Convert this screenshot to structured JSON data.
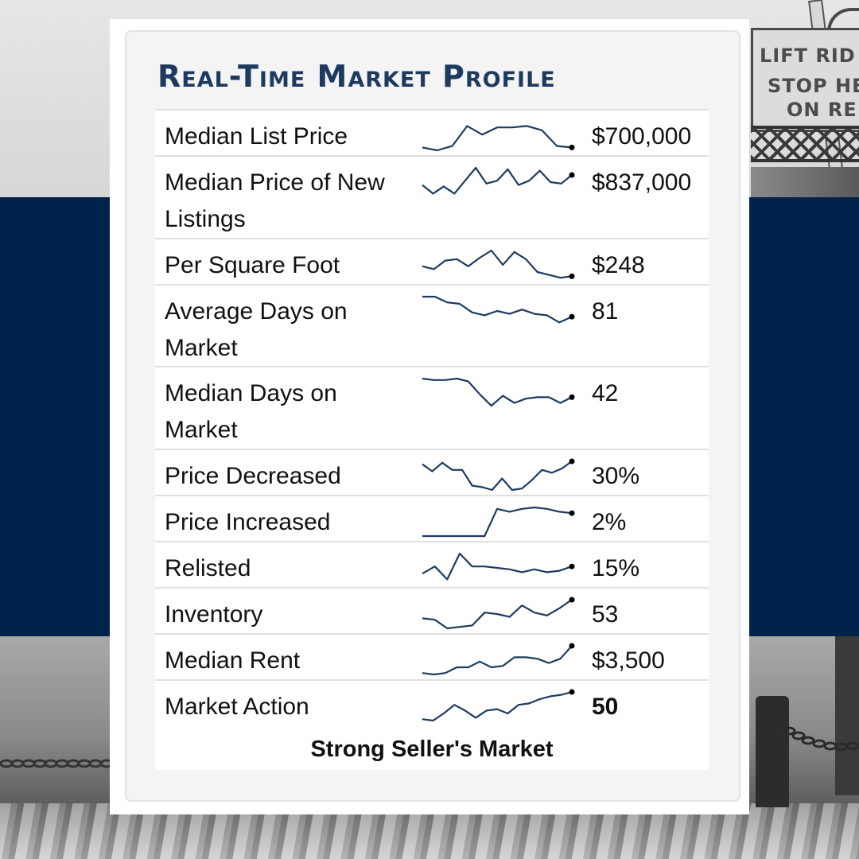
{
  "background": {
    "navy_band_color": "#00234b",
    "sign_lines": [
      "LIFT RID",
      "STOP HE",
      "ON RE"
    ]
  },
  "profile": {
    "title": "Real-Time Market Profile",
    "title_color": "#1e3a5f",
    "sparkline_color": "#1e3a5f",
    "rows": [
      {
        "label": "Median List Price",
        "value": "$700,000",
        "bold": false,
        "trend": [
          0.1,
          0.0,
          0.15,
          0.85,
          0.55,
          0.8,
          0.8,
          0.85,
          0.7,
          0.15,
          0.1
        ]
      },
      {
        "label": "Median Price of New Listings",
        "value": "$837,000",
        "bold": false,
        "trend": [
          0.4,
          0.1,
          0.35,
          0.1,
          0.55,
          1.0,
          0.45,
          0.55,
          0.95,
          0.4,
          0.55,
          0.9,
          0.5,
          0.45,
          0.75
        ]
      },
      {
        "label": "Per Square Foot",
        "value": "$248",
        "bold": false,
        "trend": [
          0.45,
          0.35,
          0.65,
          0.7,
          0.45,
          0.75,
          1.0,
          0.5,
          0.95,
          0.7,
          0.25,
          0.15,
          0.05,
          0.1
        ]
      },
      {
        "label": "Average Days on Market",
        "value": "81",
        "bold": false,
        "trend": [
          1.0,
          1.0,
          0.8,
          0.75,
          0.45,
          0.35,
          0.5,
          0.4,
          0.55,
          0.4,
          0.35,
          0.1,
          0.3
        ]
      },
      {
        "label": "Median Days on Market",
        "value": "42",
        "bold": false,
        "trend": [
          1.0,
          0.95,
          0.95,
          1.0,
          0.9,
          0.45,
          0.05,
          0.4,
          0.15,
          0.3,
          0.35,
          0.35,
          0.15,
          0.35
        ]
      },
      {
        "label": "Price Decreased",
        "value": "30%",
        "bold": false,
        "trend": [
          0.9,
          0.65,
          0.95,
          0.7,
          0.7,
          0.15,
          0.1,
          0.0,
          0.4,
          0.0,
          0.05,
          0.35,
          0.7,
          0.6,
          0.75,
          1.0
        ]
      },
      {
        "label": "Price Increased",
        "value": "2%",
        "bold": false,
        "trend": [
          0.0,
          0.0,
          0.0,
          0.0,
          0.0,
          0.0,
          0.95,
          0.85,
          0.95,
          1.0,
          0.95,
          0.85,
          0.8
        ]
      },
      {
        "label": "Relisted",
        "value": "15%",
        "bold": false,
        "trend": [
          0.3,
          0.55,
          0.1,
          1.0,
          0.55,
          0.55,
          0.5,
          0.45,
          0.35,
          0.45,
          0.35,
          0.4,
          0.55
        ]
      },
      {
        "label": "Inventory",
        "value": "53",
        "bold": false,
        "trend": [
          0.35,
          0.3,
          0.0,
          0.05,
          0.1,
          0.55,
          0.5,
          0.4,
          0.8,
          0.55,
          0.45,
          0.7,
          1.0
        ]
      },
      {
        "label": "Median Rent",
        "value": "$3,500",
        "bold": false,
        "trend": [
          0.05,
          0.0,
          0.05,
          0.25,
          0.25,
          0.45,
          0.25,
          0.3,
          0.6,
          0.6,
          0.55,
          0.4,
          0.55,
          1.0
        ]
      },
      {
        "label": "Market Action",
        "value": "50",
        "bold": true,
        "trend": [
          0.05,
          0.0,
          0.25,
          0.55,
          0.35,
          0.1,
          0.35,
          0.4,
          0.25,
          0.55,
          0.6,
          0.75,
          0.85,
          0.9,
          1.0
        ]
      }
    ],
    "summary": "Strong Seller's Market"
  }
}
